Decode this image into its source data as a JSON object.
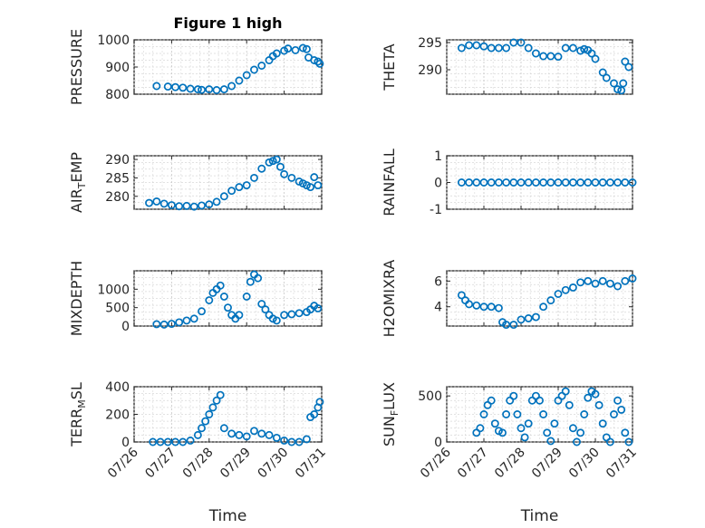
{
  "figure": {
    "title": "Figure 1 high",
    "marker_color": "#0072BD",
    "x_tick_labels": [
      "07/26",
      "07/27",
      "07/28",
      "07/29",
      "07/30",
      "07/31"
    ]
  },
  "chart_data": [
    {
      "type": "scatter",
      "id": "pressure",
      "title": "Figure 1 high",
      "ylabel": "PRESSURE",
      "xlabel": "",
      "x_domain": [
        0,
        5
      ],
      "ylim": [
        800,
        1000
      ],
      "yticks": [
        800,
        900,
        1000
      ],
      "ytick_labels": [
        "800",
        "900",
        "1000"
      ],
      "grid": true,
      "x_tick_labels_shown": false,
      "series": [
        {
          "x": [
            0.6,
            0.9,
            1.1,
            1.3,
            1.5,
            1.7,
            1.8,
            2.0,
            2.2,
            2.4,
            2.6,
            2.8,
            3.0,
            3.2,
            3.4,
            3.6,
            3.7,
            3.8,
            4.0,
            4.1,
            4.3,
            4.5,
            4.6,
            4.65,
            4.8,
            4.9,
            4.95
          ],
          "y": [
            830,
            828,
            826,
            824,
            820,
            818,
            816,
            818,
            815,
            818,
            830,
            850,
            870,
            890,
            905,
            925,
            940,
            950,
            960,
            968,
            962,
            970,
            966,
            935,
            925,
            920,
            912
          ]
        }
      ]
    },
    {
      "type": "scatter",
      "id": "theta",
      "title": "",
      "ylabel": "THETA",
      "xlabel": "",
      "x_domain": [
        0,
        5
      ],
      "ylim": [
        285.5,
        295.5
      ],
      "yticks": [
        290,
        295
      ],
      "ytick_labels": [
        "290",
        "295"
      ],
      "grid": true,
      "x_tick_labels_shown": false,
      "series": [
        {
          "x": [
            0.4,
            0.6,
            0.8,
            1.0,
            1.2,
            1.4,
            1.6,
            1.8,
            2.0,
            2.2,
            2.4,
            2.6,
            2.8,
            3.0,
            3.2,
            3.4,
            3.6,
            3.7,
            3.8,
            3.9,
            4.0,
            4.2,
            4.3,
            4.5,
            4.6,
            4.7,
            4.75,
            4.8,
            4.9
          ],
          "y": [
            294,
            294.5,
            294.5,
            294.3,
            294,
            294,
            294,
            295,
            295,
            294,
            293,
            292.5,
            292.5,
            292.4,
            294,
            294,
            293.5,
            293.8,
            293.6,
            293.0,
            292,
            289.5,
            288.5,
            287.5,
            286.4,
            286.2,
            287.5,
            291.5,
            290.5
          ]
        }
      ]
    },
    {
      "type": "scatter",
      "id": "air_temp",
      "title": "",
      "ylabel": "AIR_TEMP",
      "xlabel": "",
      "x_domain": [
        0,
        5
      ],
      "ylim": [
        276.5,
        291
      ],
      "yticks": [
        280,
        285,
        290
      ],
      "ytick_labels": [
        "280",
        "285",
        "290"
      ],
      "grid": true,
      "x_tick_labels_shown": false,
      "series": [
        {
          "x": [
            0.4,
            0.6,
            0.8,
            1.0,
            1.2,
            1.4,
            1.6,
            1.8,
            2.0,
            2.2,
            2.4,
            2.6,
            2.8,
            3.0,
            3.2,
            3.4,
            3.6,
            3.7,
            3.8,
            3.9,
            4.0,
            4.2,
            4.4,
            4.5,
            4.6,
            4.7,
            4.8,
            4.9
          ],
          "y": [
            278.2,
            278.6,
            278.0,
            277.6,
            277.3,
            277.4,
            277.2,
            277.5,
            277.8,
            278.5,
            280.0,
            281.5,
            282.5,
            283.0,
            285.0,
            287.5,
            289.2,
            289.6,
            290.0,
            288.0,
            286.0,
            285.0,
            284.0,
            283.5,
            283.0,
            282.5,
            285.2,
            283.0
          ]
        }
      ]
    },
    {
      "type": "scatter",
      "id": "rainfall",
      "title": "",
      "ylabel": "RAINFALL",
      "xlabel": "",
      "x_domain": [
        0,
        5
      ],
      "ylim": [
        -1,
        1
      ],
      "yticks": [
        -1,
        0,
        1
      ],
      "ytick_labels": [
        "-1",
        "0",
        "1"
      ],
      "grid": true,
      "x_tick_labels_shown": false,
      "series": [
        {
          "x": [
            0.4,
            0.6,
            0.8,
            1.0,
            1.2,
            1.4,
            1.6,
            1.8,
            2.0,
            2.2,
            2.4,
            2.6,
            2.8,
            3.0,
            3.2,
            3.4,
            3.6,
            3.8,
            4.0,
            4.2,
            4.4,
            4.6,
            4.8,
            5.0
          ],
          "y": [
            0,
            0,
            0,
            0,
            0,
            0,
            0,
            0,
            0,
            0,
            0,
            0,
            0,
            0,
            0,
            0,
            0,
            0,
            0,
            0,
            0,
            0,
            0,
            0
          ]
        }
      ]
    },
    {
      "type": "scatter",
      "id": "mixdepth",
      "title": "",
      "ylabel": "MIXDEPTH",
      "xlabel": "",
      "x_domain": [
        0,
        5
      ],
      "ylim": [
        0,
        1500
      ],
      "yticks": [
        0,
        500,
        1000
      ],
      "ytick_labels": [
        "0",
        "500",
        "1000"
      ],
      "grid": true,
      "x_tick_labels_shown": false,
      "series": [
        {
          "x": [
            0.6,
            0.8,
            1.0,
            1.2,
            1.4,
            1.6,
            1.8,
            2.0,
            2.1,
            2.2,
            2.3,
            2.4,
            2.5,
            2.6,
            2.7,
            2.8,
            3.0,
            3.1,
            3.2,
            3.3,
            3.4,
            3.5,
            3.6,
            3.7,
            3.8,
            4.0,
            4.2,
            4.4,
            4.6,
            4.7,
            4.8,
            4.9
          ],
          "y": [
            50,
            40,
            60,
            100,
            150,
            200,
            400,
            700,
            900,
            1000,
            1100,
            800,
            500,
            300,
            200,
            300,
            800,
            1200,
            1400,
            1300,
            600,
            450,
            300,
            200,
            150,
            300,
            320,
            350,
            380,
            450,
            550,
            480
          ]
        }
      ]
    },
    {
      "type": "scatter",
      "id": "h2omixra",
      "title": "",
      "ylabel": "H2OMIXRA",
      "xlabel": "",
      "x_domain": [
        0,
        5
      ],
      "ylim": [
        2.5,
        6.8
      ],
      "yticks": [
        4,
        6
      ],
      "ytick_labels": [
        "4",
        "6"
      ],
      "grid": true,
      "x_tick_labels_shown": false,
      "series": [
        {
          "x": [
            0.4,
            0.5,
            0.6,
            0.8,
            1.0,
            1.2,
            1.4,
            1.5,
            1.6,
            1.8,
            2.0,
            2.2,
            2.4,
            2.6,
            2.8,
            3.0,
            3.2,
            3.4,
            3.6,
            3.8,
            4.0,
            4.2,
            4.4,
            4.6,
            4.8,
            5.0
          ],
          "y": [
            4.9,
            4.5,
            4.2,
            4.1,
            4.0,
            4.0,
            3.9,
            2.8,
            2.6,
            2.6,
            3.0,
            3.1,
            3.2,
            4.0,
            4.5,
            5.0,
            5.3,
            5.5,
            5.9,
            6.0,
            5.8,
            6.0,
            5.8,
            5.6,
            6.0,
            6.2
          ]
        }
      ]
    },
    {
      "type": "scatter",
      "id": "terr_msl",
      "title": "",
      "ylabel": "TERR_MSL",
      "xlabel": "Time",
      "x_domain": [
        0,
        5
      ],
      "ylim": [
        0,
        400
      ],
      "yticks": [
        0,
        200,
        400
      ],
      "ytick_labels": [
        "0",
        "200",
        "400"
      ],
      "grid": true,
      "x_tick_labels_shown": true,
      "series": [
        {
          "x": [
            0.5,
            0.7,
            0.9,
            1.1,
            1.3,
            1.5,
            1.7,
            1.8,
            1.9,
            2.0,
            2.1,
            2.2,
            2.3,
            2.4,
            2.6,
            2.8,
            3.0,
            3.2,
            3.4,
            3.6,
            3.8,
            4.0,
            4.2,
            4.4,
            4.6,
            4.7,
            4.8,
            4.9,
            4.95
          ],
          "y": [
            0,
            0,
            0,
            0,
            0,
            10,
            50,
            100,
            150,
            200,
            250,
            300,
            340,
            100,
            60,
            50,
            40,
            80,
            60,
            50,
            30,
            10,
            0,
            0,
            20,
            180,
            200,
            250,
            290
          ]
        }
      ]
    },
    {
      "type": "scatter",
      "id": "sun_flux",
      "title": "",
      "ylabel": "SUN_FLUX",
      "xlabel": "Time",
      "x_domain": [
        0,
        5
      ],
      "ylim": [
        0,
        600
      ],
      "yticks": [
        0,
        500
      ],
      "ytick_labels": [
        "0",
        "500"
      ],
      "grid": true,
      "x_tick_labels_shown": true,
      "series": [
        {
          "x": [
            0.8,
            0.9,
            1.0,
            1.1,
            1.2,
            1.3,
            1.4,
            1.5,
            1.6,
            1.7,
            1.8,
            1.9,
            2.0,
            2.1,
            2.2,
            2.3,
            2.4,
            2.5,
            2.6,
            2.7,
            2.8,
            2.9,
            3.0,
            3.1,
            3.2,
            3.3,
            3.4,
            3.5,
            3.6,
            3.7,
            3.8,
            3.9,
            4.0,
            4.1,
            4.2,
            4.3,
            4.4,
            4.5,
            4.6,
            4.7,
            4.8,
            4.9
          ],
          "y": [
            100,
            150,
            300,
            400,
            450,
            200,
            120,
            100,
            300,
            450,
            500,
            300,
            150,
            50,
            200,
            450,
            500,
            450,
            300,
            100,
            10,
            200,
            450,
            500,
            550,
            400,
            150,
            0,
            100,
            300,
            480,
            550,
            520,
            400,
            200,
            50,
            0,
            300,
            450,
            350,
            100,
            0
          ]
        }
      ]
    }
  ]
}
